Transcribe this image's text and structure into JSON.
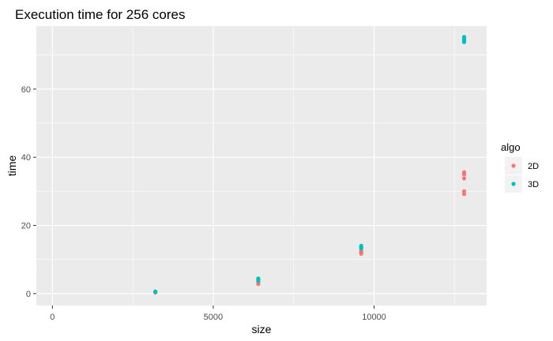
{
  "chart_data": {
    "type": "scatter",
    "title": "Execution time for 256 cores",
    "xlabel": "size",
    "ylabel": "time",
    "xlim": [
      -500,
      13500
    ],
    "ylim": [
      -3.5,
      78.5
    ],
    "xticks": [
      0,
      5000,
      10000
    ],
    "xtick_labels": [
      "0",
      "5000",
      "10000"
    ],
    "yticks": [
      0,
      20,
      40,
      60
    ],
    "ytick_labels": [
      "0",
      "20",
      "40",
      "60"
    ],
    "grid": true,
    "legend": {
      "title": "algo",
      "placement": "right"
    },
    "series": [
      {
        "name": "2D",
        "color": "#f8766d",
        "points": [
          [
            3200,
            0.3
          ],
          [
            3200,
            0.4
          ],
          [
            6400,
            2.8
          ],
          [
            6400,
            3.1
          ],
          [
            6400,
            3.4
          ],
          [
            9600,
            11.7
          ],
          [
            9600,
            12.1
          ],
          [
            9600,
            12.5
          ],
          [
            12800,
            29.2
          ],
          [
            12800,
            30.0
          ],
          [
            12800,
            33.8
          ],
          [
            12800,
            35.0
          ],
          [
            12800,
            35.6
          ]
        ]
      },
      {
        "name": "3D",
        "color": "#00bfc4",
        "points": [
          [
            3200,
            0.5
          ],
          [
            3200,
            0.6
          ],
          [
            6400,
            3.8
          ],
          [
            6400,
            4.1
          ],
          [
            6400,
            4.4
          ],
          [
            9600,
            13.2
          ],
          [
            9600,
            13.6
          ],
          [
            9600,
            14.0
          ],
          [
            12800,
            73.8
          ],
          [
            12800,
            74.3
          ],
          [
            12800,
            74.8
          ],
          [
            12800,
            75.3
          ]
        ]
      }
    ]
  }
}
